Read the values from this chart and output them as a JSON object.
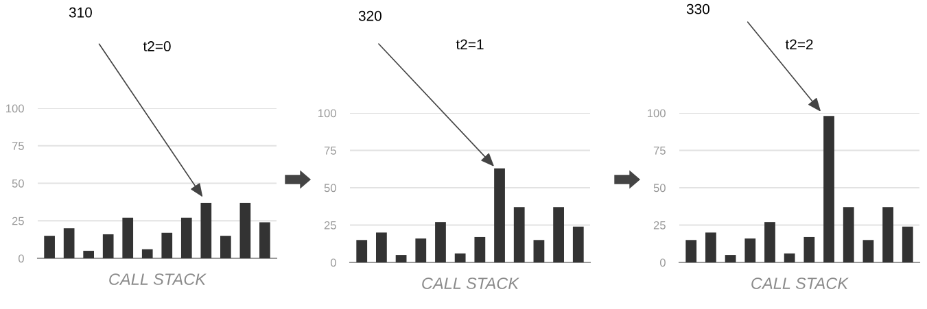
{
  "chart_data": [
    {
      "type": "bar",
      "title": "t2=0",
      "xlabel": "CALL STACK",
      "categories": [
        null,
        null,
        null,
        null,
        null,
        null,
        null,
        null,
        null,
        null,
        null,
        null
      ],
      "values": [
        15,
        20,
        5,
        16,
        27,
        6,
        17,
        27,
        37,
        15,
        37,
        24
      ],
      "color": "#333333",
      "ylim": [
        0,
        100
      ],
      "yticks": [
        0,
        25,
        50,
        75,
        100
      ],
      "grid": "y",
      "annotations": [
        "310"
      ]
    },
    {
      "type": "bar",
      "title": "t2=1",
      "xlabel": "CALL STACK",
      "categories": [
        null,
        null,
        null,
        null,
        null,
        null,
        null,
        null,
        null,
        null,
        null,
        null
      ],
      "values": [
        15,
        20,
        5,
        16,
        27,
        6,
        17,
        63,
        37,
        15,
        37,
        24
      ],
      "color": "#333333",
      "ylim": [
        0,
        100
      ],
      "yticks": [
        0,
        25,
        50,
        75,
        100
      ],
      "grid": "y",
      "annotations": [
        "320"
      ]
    },
    {
      "type": "bar",
      "title": "t2=2",
      "xlabel": "CALL STACK",
      "categories": [
        null,
        null,
        null,
        null,
        null,
        null,
        null,
        null,
        null,
        null,
        null,
        null
      ],
      "values": [
        15,
        20,
        5,
        16,
        27,
        6,
        17,
        98,
        37,
        15,
        37,
        24
      ],
      "color": "#333333",
      "ylim": [
        0,
        100
      ],
      "yticks": [
        0,
        25,
        50,
        75,
        100
      ],
      "grid": "y",
      "annotations": [
        "330"
      ]
    }
  ]
}
